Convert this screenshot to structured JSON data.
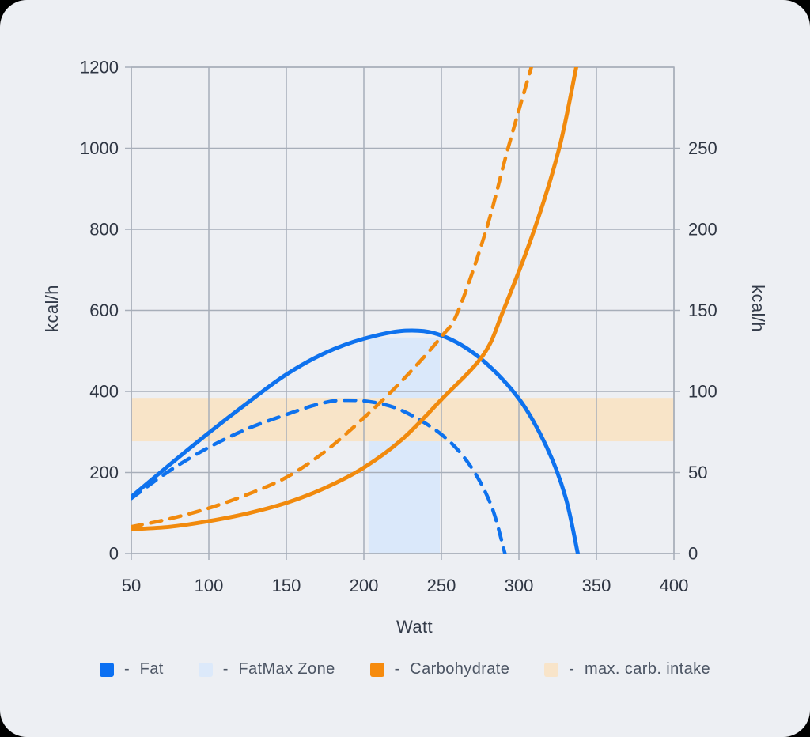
{
  "window": {
    "background": "#000000",
    "card_background": "#EDEFF3"
  },
  "chart_data": {
    "type": "line",
    "title": "",
    "x_axis": {
      "label": "Watt",
      "range": [
        50,
        400
      ],
      "ticks": [
        50,
        100,
        150,
        200,
        250,
        300,
        350,
        400
      ],
      "grid": true
    },
    "y_axis_left": {
      "label": "kcal/h",
      "range": [
        0,
        1200
      ],
      "ticks": [
        0,
        200,
        400,
        600,
        800,
        1000,
        1200
      ],
      "grid": true
    },
    "y_axis_right": {
      "label": "kcal/h",
      "range": [
        0,
        300
      ],
      "ticks": [
        0,
        50,
        100,
        150,
        200,
        250
      ]
    },
    "legend_position": "bottom",
    "series": [
      {
        "name": "Fat",
        "style": "solid",
        "color": "#0E72EE",
        "axis": "left",
        "points_watt_kcal": [
          [
            50,
            140
          ],
          [
            75,
            220
          ],
          [
            100,
            298
          ],
          [
            125,
            372
          ],
          [
            150,
            442
          ],
          [
            175,
            495
          ],
          [
            200,
            530
          ],
          [
            227,
            550
          ],
          [
            250,
            538
          ],
          [
            275,
            482
          ],
          [
            300,
            382
          ],
          [
            318,
            262
          ],
          [
            330,
            140
          ],
          [
            338,
            0
          ]
        ]
      },
      {
        "name": "Fat (dashed)",
        "style": "dashed",
        "color": "#0E72EE",
        "axis": "left",
        "points_watt_kcal": [
          [
            50,
            136
          ],
          [
            75,
            205
          ],
          [
            100,
            262
          ],
          [
            125,
            308
          ],
          [
            150,
            343
          ],
          [
            170,
            368
          ],
          [
            185,
            378
          ],
          [
            205,
            374
          ],
          [
            225,
            352
          ],
          [
            250,
            294
          ],
          [
            268,
            220
          ],
          [
            282,
            120
          ],
          [
            291,
            0
          ]
        ]
      },
      {
        "name": "Carbohydrate",
        "style": "solid",
        "color": "#F18A0D",
        "axis": "left",
        "points_watt_kcal": [
          [
            50,
            60
          ],
          [
            75,
            66
          ],
          [
            100,
            80
          ],
          [
            125,
            99
          ],
          [
            150,
            125
          ],
          [
            175,
            162
          ],
          [
            200,
            212
          ],
          [
            225,
            283
          ],
          [
            250,
            380
          ],
          [
            277,
            490
          ],
          [
            290,
            600
          ],
          [
            310,
            800
          ],
          [
            326,
            1000
          ],
          [
            337,
            1200
          ]
        ]
      },
      {
        "name": "Carbohydrate (dashed)",
        "style": "dashed",
        "color": "#F18A0D",
        "axis": "left",
        "points_watt_kcal": [
          [
            50,
            66
          ],
          [
            75,
            86
          ],
          [
            100,
            112
          ],
          [
            125,
            146
          ],
          [
            150,
            188
          ],
          [
            175,
            252
          ],
          [
            200,
            335
          ],
          [
            225,
            428
          ],
          [
            250,
            535
          ],
          [
            261,
            600
          ],
          [
            279,
            800
          ],
          [
            293,
            1000
          ],
          [
            308,
            1200
          ]
        ]
      }
    ],
    "zones": [
      {
        "name": "FatMax Zone",
        "color": "#DAE8FA",
        "x_range_watt": [
          203,
          249
        ],
        "y_range_kcal": [
          0,
          533
        ]
      },
      {
        "name": "max. carb. intake",
        "color": "#F8E4C8",
        "x_range_watt": [
          50,
          400
        ],
        "y_range_kcal": [
          277,
          384
        ]
      }
    ]
  },
  "legend": {
    "separator": "-",
    "items": [
      {
        "label": "Fat",
        "swatch_color": "#0B70F2"
      },
      {
        "label": "FatMax Zone",
        "swatch_color": "#DCE9FA"
      },
      {
        "label": "Carbohydrate",
        "swatch_color": "#F68B0E"
      },
      {
        "label": "max. carb. intake",
        "swatch_color": "#F8E4C9"
      }
    ]
  },
  "styles": {
    "grid_color": "#A7AEB9",
    "tick_label_color": "#2F3643",
    "axis_title_color": "#333B49",
    "legend_text_color": "#4C5564"
  }
}
